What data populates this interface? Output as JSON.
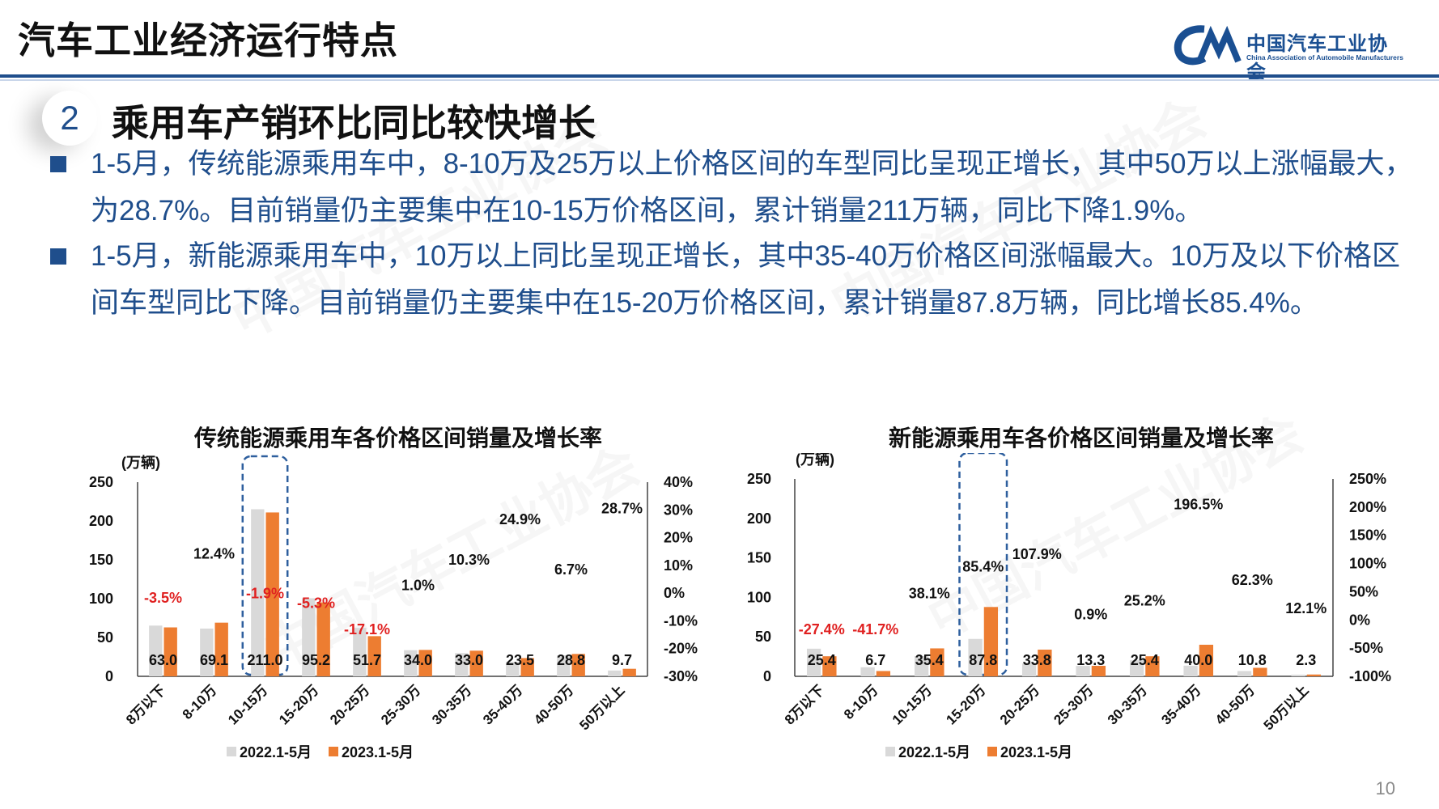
{
  "header": {
    "title": "汽车工业经济运行特点",
    "logo_cn": "中国汽车工业协会",
    "logo_en": "China Association of Automobile Manufacturers"
  },
  "section": {
    "number": "2",
    "title": "乘用车产销环比同比较快增长"
  },
  "bullets": [
    "1-5月，传统能源乘用车中，8-10万及25万以上价格区间的车型同比呈现正增长，其中50万以上涨幅最大，为28.7%。目前销量仍主要集中在10-15万价格区间，累计销量211万辆，同比下降1.9%。",
    "1-5月，新能源乘用车中，10万以上同比呈现正增长，其中35-40万价格区间涨幅最大。10万及以下价格区间车型同比下降。目前销量仍主要集中在15-20万价格区间，累计销量87.8万辆，同比增长85.4%。"
  ],
  "page_number": "10",
  "colors": {
    "bar_2022": "#d9d9d9",
    "bar_2023": "#ed7d31",
    "negative_label": "#e02020",
    "positive_label": "#111111",
    "highlight_box": "#2e5f9e",
    "brand": "#1f4e8c"
  },
  "chart_data": [
    {
      "type": "bar",
      "title": "传统能源乘用车各价格区间销量及增长率",
      "unit": "(万辆)",
      "categories": [
        "8万以下",
        "8-10万",
        "10-15万",
        "15-20万",
        "20-25万",
        "25-30万",
        "30-35万",
        "35-40万",
        "40-50万",
        "50万以上"
      ],
      "series": [
        {
          "name": "2022.1-5月",
          "values": [
            65.3,
            61.5,
            215.1,
            100.5,
            62.3,
            33.7,
            29.9,
            18.8,
            27.0,
            7.5
          ]
        },
        {
          "name": "2023.1-5月",
          "values": [
            63.0,
            69.1,
            211.0,
            95.2,
            51.7,
            34.0,
            33.0,
            23.5,
            28.8,
            9.7
          ]
        }
      ],
      "value_labels": [
        "63.0",
        "69.1",
        "211.0",
        "95.2",
        "51.7",
        "34.0",
        "33.0",
        "23.5",
        "28.8",
        "9.7"
      ],
      "growth": [
        -3.5,
        12.4,
        -1.9,
        -5.3,
        -17.1,
        1.0,
        10.3,
        24.9,
        6.7,
        28.7
      ],
      "growth_labels": [
        "-3.5%",
        "12.4%",
        "-1.9%",
        "-5.3%",
        "-17.1%",
        "1.0%",
        "10.3%",
        "24.9%",
        "6.7%",
        "28.7%"
      ],
      "ylim": [
        0,
        250
      ],
      "y_ticks": [
        "0",
        "50",
        "100",
        "150",
        "200",
        "250"
      ],
      "y2lim": [
        -30,
        40
      ],
      "y2_ticks": [
        "-30%",
        "-20%",
        "-10%",
        "0%",
        "10%",
        "20%",
        "30%",
        "40%"
      ],
      "highlight": "10-15万",
      "legend_position": "bottom"
    },
    {
      "type": "bar",
      "title": "新能源乘用车各价格区间销量及增长率",
      "unit": "(万辆)",
      "categories": [
        "8万以下",
        "8-10万",
        "10-15万",
        "15-20万",
        "20-25万",
        "25-30万",
        "30-35万",
        "35-40万",
        "40-50万",
        "50万以上"
      ],
      "series": [
        {
          "name": "2022.1-5月",
          "values": [
            35.0,
            11.5,
            25.6,
            47.4,
            16.2,
            13.2,
            20.3,
            13.5,
            6.7,
            2.1
          ]
        },
        {
          "name": "2023.1-5月",
          "values": [
            25.4,
            6.7,
            35.4,
            87.8,
            33.8,
            13.3,
            25.4,
            40.0,
            10.8,
            2.3
          ]
        }
      ],
      "value_labels": [
        "25.4",
        "6.7",
        "35.4",
        "87.8",
        "33.8",
        "13.3",
        "25.4",
        "40.0",
        "10.8",
        "2.3"
      ],
      "growth": [
        -27.4,
        -41.7,
        38.1,
        85.4,
        107.9,
        0.9,
        25.2,
        196.5,
        62.3,
        12.1
      ],
      "growth_labels": [
        "-27.4%",
        "-41.7%",
        "38.1%",
        "85.4%",
        "107.9%",
        "0.9%",
        "25.2%",
        "196.5%",
        "62.3%",
        "12.1%"
      ],
      "ylim": [
        0,
        250
      ],
      "y_ticks": [
        "0",
        "50",
        "100",
        "150",
        "200",
        "250"
      ],
      "y2lim": [
        -100,
        250
      ],
      "y2_ticks": [
        "-100%",
        "-50%",
        "0%",
        "50%",
        "100%",
        "150%",
        "200%",
        "250%"
      ],
      "highlight": "15-20万",
      "legend_position": "bottom"
    }
  ]
}
